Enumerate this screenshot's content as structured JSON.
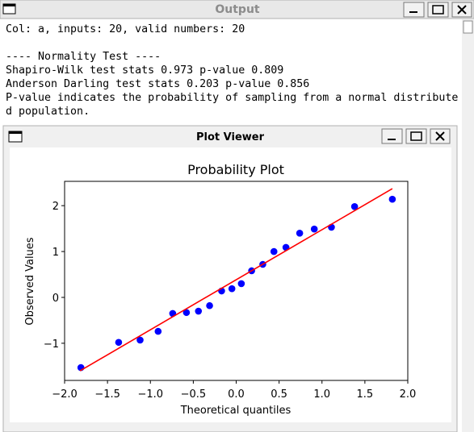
{
  "output_window": {
    "title": "Output",
    "lines": [
      "Col: a, inputs: 20, valid numbers: 20",
      "---- Normality Test ----",
      "Shapiro-Wilk test stats 0.973 p-value 0.809",
      "Anderson Darling test stats 0.203 p-value 0.856",
      "P-value indicates the probability of sampling from a normal distribute",
      "d population."
    ]
  },
  "plot_viewer": {
    "title": "Plot Viewer",
    "chart_data": {
      "type": "scatter",
      "title": "Probability Plot",
      "xlabel": "Theoretical quantiles",
      "ylabel": "Observed Values",
      "xlim": [
        -2.0,
        2.0
      ],
      "ylim": [
        -1.81,
        2.53
      ],
      "xticks": [
        {
          "value": -2.0,
          "label": "−2.0"
        },
        {
          "value": -1.5,
          "label": "−1.5"
        },
        {
          "value": -1.0,
          "label": "−1.0"
        },
        {
          "value": -0.5,
          "label": "−0.5"
        },
        {
          "value": 0.0,
          "label": "0.0"
        },
        0.5,
        {
          "value": 1.0,
          "label": "1.0"
        },
        1.5,
        {
          "value": 2.0,
          "label": "2.0"
        }
      ],
      "yticks": [
        {
          "value": -1,
          "label": "−1"
        },
        0,
        1,
        2
      ],
      "series": [
        {
          "color": "#0000ff",
          "mode": "markers",
          "x": [
            -1.81,
            -1.37,
            -1.12,
            -0.91,
            -0.74,
            -0.58,
            -0.44,
            -0.31,
            -0.17,
            -0.05,
            0.06,
            0.18,
            0.31,
            0.44,
            0.58,
            0.74,
            0.91,
            1.11,
            1.38,
            1.82
          ],
          "values": [
            -1.53,
            -0.98,
            -0.93,
            -0.74,
            -0.35,
            -0.33,
            -0.3,
            -0.18,
            0.14,
            0.19,
            0.3,
            0.58,
            0.72,
            1.0,
            1.09,
            1.4,
            1.49,
            1.53,
            1.98,
            2.14
          ]
        },
        {
          "color": "#ff0000",
          "mode": "line",
          "x": [
            -1.82,
            1.82
          ],
          "values": [
            -1.6,
            2.37
          ]
        }
      ]
    }
  }
}
